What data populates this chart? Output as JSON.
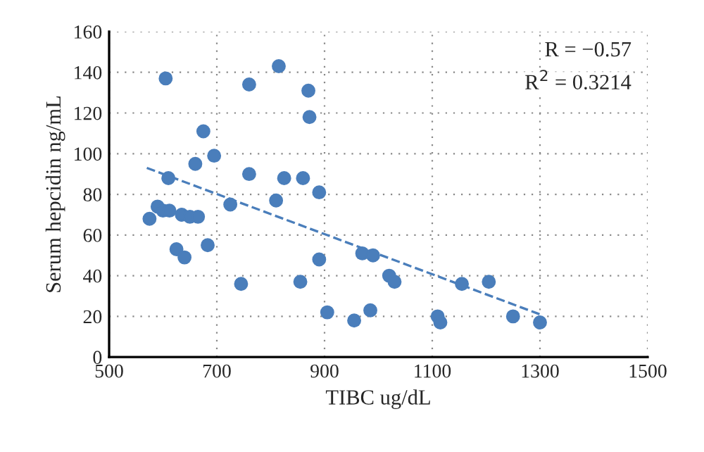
{
  "chart_data": {
    "type": "scatter",
    "xlabel": "TIBC ug/dL",
    "ylabel": "Serum hepcidin ng/mL",
    "xlim": [
      500,
      1500
    ],
    "xticks": [
      500,
      700,
      900,
      1100,
      1300,
      1500
    ],
    "ylim": [
      0,
      160
    ],
    "yticks": [
      0,
      20,
      40,
      60,
      80,
      100,
      120,
      140,
      160
    ],
    "grid": true,
    "legend": false,
    "annotations": [
      "R = −0.57",
      "R$^{2}$ = 0.3214"
    ],
    "series": [
      {
        "color": "#4a7ebb",
        "marker": "circle",
        "x": [
          575,
          590,
          600,
          612,
          625,
          635,
          640,
          650,
          660,
          665,
          675,
          683,
          695,
          605,
          610,
          725,
          745,
          760,
          760,
          810,
          815,
          825,
          855,
          860,
          870,
          872,
          890,
          890,
          905,
          955,
          970,
          985,
          990,
          1020,
          1030,
          1110,
          1115,
          1155,
          1205,
          1250,
          1300
        ],
        "values": [
          68,
          74,
          72,
          72,
          53,
          70,
          49,
          69,
          95,
          69,
          111,
          55,
          99,
          137,
          88,
          75,
          36,
          90,
          134,
          77,
          143,
          88,
          37,
          88,
          131,
          118,
          81,
          48,
          22,
          18,
          51,
          23,
          50,
          40,
          37,
          20,
          17,
          36,
          37,
          20,
          17
        ]
      },
      {
        "type": "line",
        "color": "#4a7ebb",
        "line_style": "dashed",
        "x": [
          570,
          1300
        ],
        "values": [
          93,
          21
        ]
      }
    ]
  }
}
